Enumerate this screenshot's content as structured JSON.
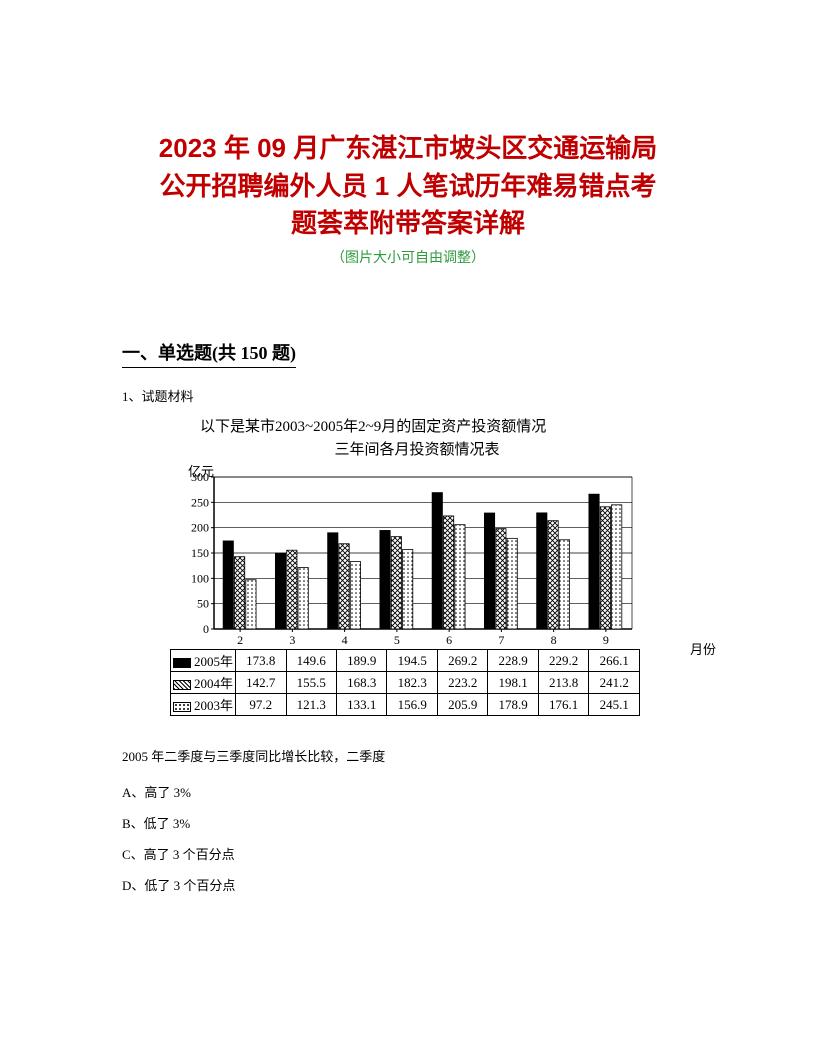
{
  "title": {
    "line1": "2023 年 09 月广东湛江市坡头区交通运输局",
    "line2": "公开招聘编外人员 1 人笔试历年难易错点考",
    "line3": "题荟萃附带答案详解",
    "subtitle": "（图片大小可自由调整）",
    "title_color": "#c00000",
    "subtitle_color": "#2e9b3d",
    "title_fontsize": 26,
    "subtitle_fontsize": 14
  },
  "section": {
    "heading": "一、单选题(共 150 题)"
  },
  "q1": {
    "number_label": "1、试题材料",
    "chart": {
      "type": "grouped-bar",
      "title_line1": "以下是某市2003~2005年2~9月的固定资产投资额情况",
      "title_line2": "三年间各月投资额情况表",
      "y_unit": "亿元",
      "x_unit": "月份",
      "ylim": [
        0,
        300
      ],
      "ytick_step": 50,
      "yticks": [
        0,
        50,
        100,
        150,
        200,
        250,
        300
      ],
      "categories": [
        "2",
        "3",
        "4",
        "5",
        "6",
        "7",
        "8",
        "9"
      ],
      "series": [
        {
          "name": "2005年",
          "fill": "solid-black",
          "color": "#000000",
          "values": [
            173.8,
            149.6,
            189.9,
            194.5,
            269.2,
            228.9,
            229.2,
            266.1
          ]
        },
        {
          "name": "2004年",
          "fill": "crosshatch",
          "color": "#000000",
          "values": [
            142.7,
            155.5,
            168.3,
            182.3,
            223.2,
            198.1,
            213.8,
            241.2
          ]
        },
        {
          "name": "2003年",
          "fill": "dots",
          "color": "#000000",
          "values": [
            97.2,
            121.3,
            133.1,
            156.9,
            205.9,
            178.9,
            176.1,
            245.1
          ]
        }
      ],
      "background_color": "#ffffff",
      "axis_color": "#000000",
      "grid_color": "#000000",
      "bar_border": "#000000",
      "group_gap": 0.35,
      "bar_gap": 0.02,
      "font_size_axis": 12
    },
    "question_text": "2005 年二季度与三季度同比增长比较，二季度",
    "options": {
      "A": "A、高了 3%",
      "B": "B、低了 3%",
      "C": "C、高了 3 个百分点",
      "D": "D、低了 3 个百分点"
    }
  }
}
